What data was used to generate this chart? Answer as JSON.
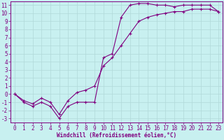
{
  "xlabel": "Windchill (Refroidissement éolien,°C)",
  "bg_color": "#c8f0f0",
  "line_color": "#800080",
  "grid_color": "#b0d8d8",
  "xlim": [
    -0.5,
    23.5
  ],
  "ylim": [
    -3.5,
    11.5
  ],
  "xticks": [
    0,
    1,
    2,
    3,
    4,
    5,
    6,
    7,
    8,
    9,
    10,
    11,
    12,
    13,
    14,
    15,
    16,
    17,
    18,
    19,
    20,
    21,
    22,
    23
  ],
  "yticks": [
    -3,
    -2,
    -1,
    0,
    1,
    2,
    3,
    4,
    5,
    6,
    7,
    8,
    9,
    10,
    11
  ],
  "curve1_x": [
    0,
    1,
    2,
    3,
    4,
    5,
    6,
    7,
    8,
    9,
    10,
    11,
    12,
    13,
    14,
    15,
    16,
    17,
    18,
    19,
    20,
    21,
    22,
    23
  ],
  "curve1_y": [
    0,
    -1,
    -1.5,
    -1.0,
    -1.5,
    -3.0,
    -1.5,
    -1.0,
    -1.0,
    -1.0,
    4.5,
    5.0,
    9.5,
    11.0,
    11.2,
    11.2,
    11.0,
    11.0,
    10.8,
    11.0,
    11.0,
    11.0,
    11.0,
    10.2
  ],
  "curve2_x": [
    0,
    1,
    2,
    3,
    4,
    5,
    6,
    7,
    8,
    9,
    10,
    11,
    12,
    13,
    14,
    15,
    16,
    17,
    18,
    19,
    20,
    21,
    22,
    23
  ],
  "curve2_y": [
    0,
    -0.8,
    -1.2,
    -0.5,
    -1.0,
    -2.5,
    -0.8,
    0.2,
    0.5,
    1.0,
    3.5,
    4.5,
    6.0,
    7.5,
    9.0,
    9.5,
    9.8,
    10.0,
    10.2,
    10.2,
    10.5,
    10.5,
    10.5,
    10.2
  ],
  "marker_size": 3,
  "linewidth": 0.8,
  "tick_fontsize": 5.5,
  "xlabel_fontsize": 5.5
}
